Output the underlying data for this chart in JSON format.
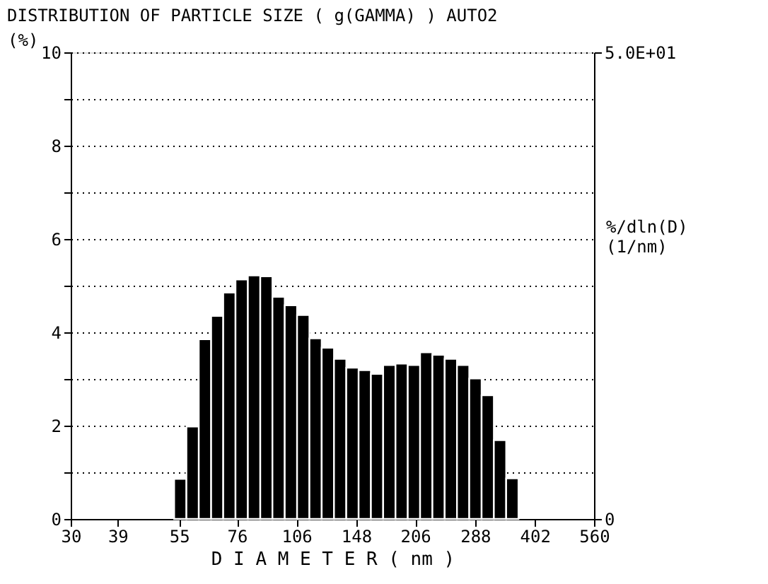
{
  "chart_data": {
    "type": "histogram",
    "title": "DISTRIBUTION OF PARTICLE SIZE  ( g(GAMMA) )  AUTO2",
    "xlabel": "D I A M E T E R ( nm )",
    "ylabel": "(%)",
    "y2label": "%/dln(D) (1/nm)",
    "log": "x",
    "bins": [
      53.5,
      57.3,
      61.4,
      65.8,
      70.4,
      75.4,
      80.8,
      86.6,
      92.7,
      99.3,
      106.4,
      114.0,
      122.1,
      130.8,
      140.1,
      150.1,
      160.8,
      172.2,
      184.5,
      197.6,
      211.7,
      226.8,
      242.9,
      260.2,
      278.7,
      298.6,
      319.8,
      342.6,
      367.0
    ],
    "values": [
      0.86,
      1.98,
      3.85,
      4.35,
      4.85,
      5.13,
      5.22,
      5.2,
      4.76,
      4.58,
      4.37,
      3.87,
      3.67,
      3.43,
      3.24,
      3.19,
      3.11,
      3.3,
      3.33,
      3.3,
      3.57,
      3.52,
      3.43,
      3.3,
      3.01,
      2.65,
      1.69,
      0.87
    ],
    "color": "#000000",
    "xlim": [
      30,
      560
    ],
    "xticks": [
      30,
      39,
      55,
      76,
      106,
      148,
      206,
      288,
      402,
      560
    ],
    "ylim": [
      0,
      10
    ],
    "yticks": [
      0,
      {
        "value": 1,
        "label": null
      },
      2,
      {
        "value": 3,
        "label": null
      },
      4,
      {
        "value": 5,
        "label": null
      },
      6,
      {
        "value": 7,
        "label": null
      },
      8,
      {
        "value": 9,
        "label": null
      },
      10
    ],
    "y2lim": [
      0,
      50
    ],
    "y2ticks": [
      0,
      {
        "value": 50,
        "label": "5.0E+01"
      }
    ],
    "grid": "y",
    "line_style": "dotted"
  }
}
